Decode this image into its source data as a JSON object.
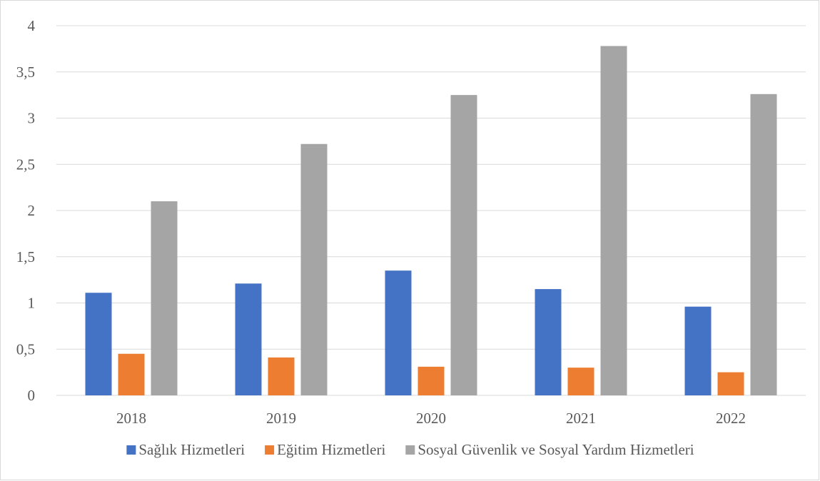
{
  "chart_data": {
    "type": "bar",
    "title": "",
    "xlabel": "",
    "ylabel": "",
    "categories": [
      "2018",
      "2019",
      "2020",
      "2021",
      "2022"
    ],
    "series": [
      {
        "name": "Sağlık Hizmetleri",
        "color": "#4472c4",
        "values": [
          1.11,
          1.21,
          1.35,
          1.15,
          0.96
        ]
      },
      {
        "name": "Eğitim Hizmetleri",
        "color": "#ed7d31",
        "values": [
          0.45,
          0.41,
          0.31,
          0.3,
          0.25
        ]
      },
      {
        "name": "Sosyal Güvenlik ve Sosyal Yardım Hizmetleri",
        "color": "#a5a5a5",
        "values": [
          2.1,
          2.72,
          3.25,
          3.78,
          3.26
        ]
      }
    ],
    "ylim": [
      0,
      4
    ],
    "yticks": [
      0,
      0.5,
      1,
      1.5,
      2,
      2.5,
      3,
      3.5,
      4
    ],
    "ytick_labels": [
      "0",
      "0,5",
      "1",
      "1,5",
      "2",
      "2,5",
      "3",
      "3,5",
      "4"
    ],
    "grid": true,
    "legend_position": "bottom"
  }
}
